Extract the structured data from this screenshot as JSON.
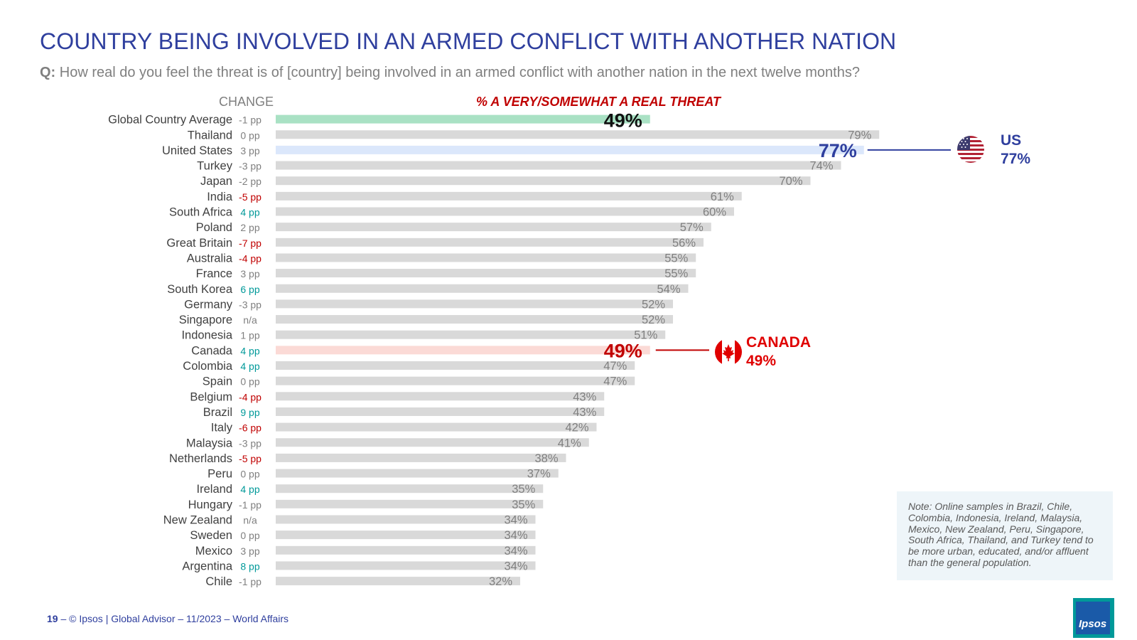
{
  "title": "COUNTRY BEING INVOLVED IN AN ARMED CONFLICT WITH ANOTHER NATION",
  "question": {
    "prefix": "Q:",
    "text": "How real do you feel the threat is of [country] being involved in an armed conflict with another nation in the next twelve months?"
  },
  "change_header": "CHANGE",
  "colors": {
    "title": "#2f3f9e",
    "bar_default": "#d9d9d9",
    "bar_global": "#a9e1c4",
    "bar_us": "#dbe7fb",
    "bar_canada": "#fbdad6",
    "change_negative": "#c00000",
    "change_positive": "#009999",
    "change_neutral": "#7f7f7f",
    "canada_accent": "#e00000",
    "us_accent": "#2f3f9e"
  },
  "chart_data": {
    "type": "bar",
    "orientation": "horizontal",
    "title": "% A VERY/SOMEWHAT A REAL THREAT",
    "xlim": [
      0,
      100
    ],
    "categories": [
      "Global Country Average",
      "Thailand",
      "United States",
      "Turkey",
      "Japan",
      "India",
      "South Africa",
      "Poland",
      "Great Britain",
      "Australia",
      "France",
      "South Korea",
      "Germany",
      "Singapore",
      "Indonesia",
      "Canada",
      "Colombia",
      "Spain",
      "Belgium",
      "Brazil",
      "Italy",
      "Malaysia",
      "Netherlands",
      "Peru",
      "Ireland",
      "Hungary",
      "New Zealand",
      "Sweden",
      "Mexico",
      "Argentina",
      "Chile"
    ],
    "values": [
      49,
      79,
      77,
      74,
      70,
      61,
      60,
      57,
      56,
      55,
      55,
      54,
      52,
      52,
      51,
      49,
      47,
      47,
      43,
      43,
      42,
      41,
      38,
      37,
      35,
      35,
      34,
      34,
      34,
      34,
      32
    ],
    "value_labels": [
      "49%",
      "79%",
      "77%",
      "74%",
      "70%",
      "61%",
      "60%",
      "57%",
      "56%",
      "55%",
      "55%",
      "54%",
      "52%",
      "52%",
      "51%",
      "49%",
      "47%",
      "47%",
      "43%",
      "43%",
      "42%",
      "41%",
      "38%",
      "37%",
      "35%",
      "35%",
      "34%",
      "34%",
      "34%",
      "34%",
      "32%"
    ],
    "change_labels": [
      "-1 pp",
      "0 pp",
      "3 pp",
      "-3 pp",
      "-2 pp",
      "-5 pp",
      "4 pp",
      "2 pp",
      "-7 pp",
      "-4 pp",
      "3 pp",
      "6 pp",
      "-3 pp",
      "n/a",
      "1 pp",
      "4 pp",
      "4 pp",
      "0 pp",
      "-4 pp",
      "9 pp",
      "-6 pp",
      "-3 pp",
      "-5 pp",
      "0 pp",
      "4 pp",
      "-1 pp",
      "n/a",
      "0 pp",
      "3 pp",
      "8 pp",
      "-1 pp"
    ],
    "change_colors": [
      "neutral",
      "neutral",
      "neutral",
      "neutral",
      "neutral",
      "negative",
      "positive",
      "neutral",
      "negative",
      "negative",
      "neutral",
      "positive",
      "neutral",
      "neutral",
      "neutral",
      "positive",
      "positive",
      "neutral",
      "negative",
      "positive",
      "negative",
      "neutral",
      "negative",
      "neutral",
      "positive",
      "neutral",
      "neutral",
      "neutral",
      "neutral",
      "positive",
      "neutral"
    ],
    "highlights": {
      "Global Country Average": "global",
      "United States": "us",
      "Canada": "canada"
    }
  },
  "callouts": {
    "us": {
      "name": "US",
      "value": "77%"
    },
    "canada": {
      "name": "CANADA",
      "value": "49%"
    }
  },
  "note": "Note: Online samples in Brazil, Chile, Colombia, Indonesia, Ireland, Malaysia, Mexico, New Zealand, Peru, Singapore, South Africa, Thailand, and Turkey tend to be more urban, educated, and/or affluent than the general population.",
  "footer": {
    "page": "19",
    "text": "–   © Ipsos | Global Advisor – 11/2023 – World Affairs"
  },
  "logo_text": "Ipsos"
}
